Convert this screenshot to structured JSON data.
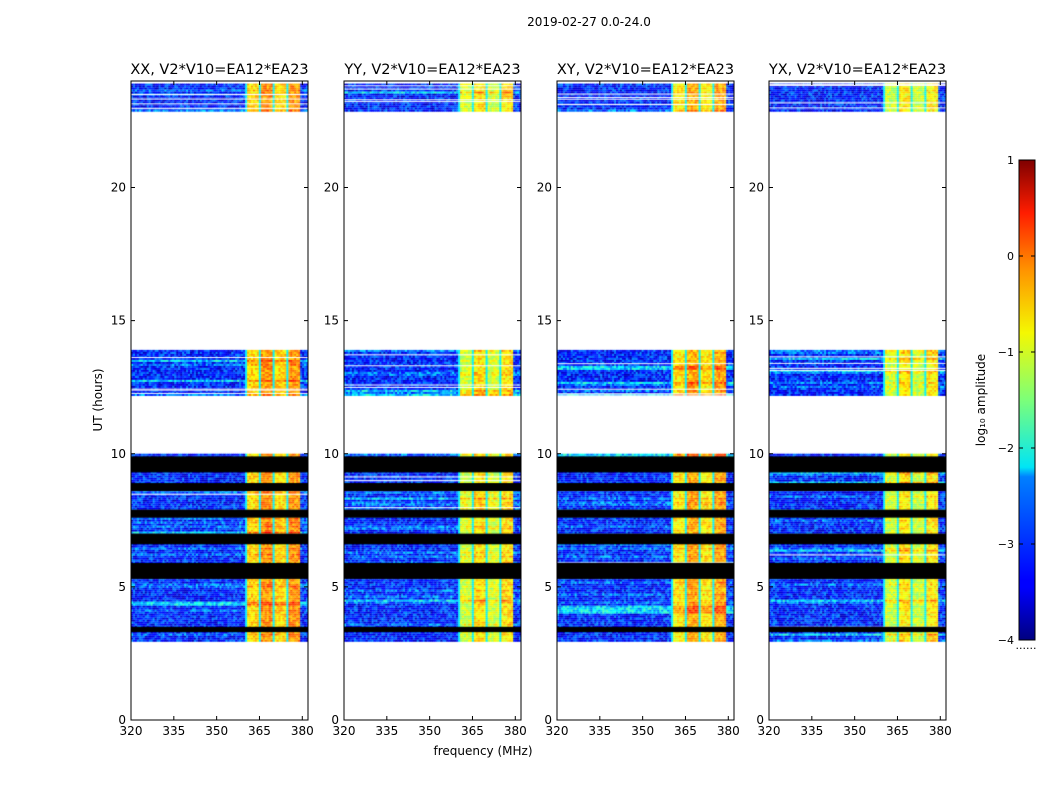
{
  "suptitle": "2019-02-27 0.0-24.0",
  "chart_data": {
    "type": "heatmap",
    "xlabel": "frequency (MHz)",
    "ylabel": "UT (hours)",
    "xlim": [
      320,
      382
    ],
    "ylim": [
      0,
      24
    ],
    "xticks": [
      320,
      335,
      350,
      365,
      380
    ],
    "yticks": [
      0,
      5,
      10,
      15,
      20
    ],
    "panels": [
      {
        "title": "XX, V2*V10=EA12*EA23",
        "pol": "XX",
        "strong": 0.0
      },
      {
        "title": "YY, V2*V10=EA12*EA23",
        "pol": "YY",
        "strong": -0.8
      },
      {
        "title": "XY, V2*V10=EA12*EA23",
        "pol": "XY",
        "strong": -0.2
      },
      {
        "title": "YX, V2*V10=EA12*EA23",
        "pol": "YX",
        "strong": -0.9
      }
    ],
    "data_time_ranges_hours": [
      [
        2.95,
        10.0
      ],
      [
        12.2,
        13.9
      ],
      [
        22.9,
        23.9
      ]
    ],
    "masked_black_bands_hours": [
      [
        9.3,
        9.9
      ],
      [
        8.6,
        8.9
      ],
      [
        7.6,
        7.9
      ],
      [
        6.6,
        7.0
      ],
      [
        5.3,
        5.9
      ],
      [
        3.3,
        3.5
      ]
    ],
    "background_log10_amplitude": -3.2,
    "strong_band_mhz": [
      360,
      379
    ],
    "strong_band_log10_amplitude": -0.6,
    "colorbar": {
      "label": "log₁₀ amplitude",
      "min": -4,
      "max": 1,
      "ticks": [
        "1",
        "0",
        "−1",
        "−2",
        "−3",
        "−4"
      ],
      "colormap": "jet",
      "below_label": "......"
    }
  }
}
